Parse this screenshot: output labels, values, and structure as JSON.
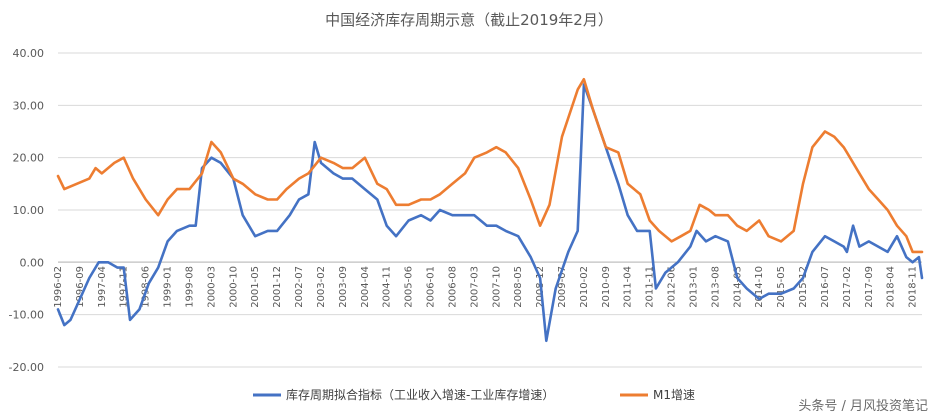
{
  "chart_data": {
    "type": "line",
    "title": "中国经济库存周期示意（截止2019年2月）",
    "ylim": [
      -20,
      40
    ],
    "yticks": [
      "40.00",
      "30.00",
      "20.00",
      "10.00",
      "0.00",
      "-10.00",
      "-20.00"
    ],
    "ytick_values": [
      40,
      30,
      20,
      10,
      0,
      -10,
      -20
    ],
    "x_start": "1996-02",
    "x_end": "2019-02",
    "xtick_labels": [
      "1996-02",
      "1996-09",
      "1997-04",
      "1997-11",
      "1998-06",
      "1999-01",
      "1999-08",
      "2000-03",
      "2000-10",
      "2001-05",
      "2001-12",
      "2002-07",
      "2003-02",
      "2003-09",
      "2004-04",
      "2004-11",
      "2005-06",
      "2006-01",
      "2006-08",
      "2007-03",
      "2007-10",
      "2008-05",
      "2008-12",
      "2009-07",
      "2010-02",
      "2010-09",
      "2011-04",
      "2011-11",
      "2012-06",
      "2013-01",
      "2013-08",
      "2014-03",
      "2014-10",
      "2015-05",
      "2015-12",
      "2016-07",
      "2017-02",
      "2017-09",
      "2018-04",
      "2018-11"
    ],
    "grid": true,
    "legend_position": "bottom",
    "series": [
      {
        "name": "库存周期拟合指标（工业收入增速-工业库存增速）",
        "color": "#4472C4",
        "points": [
          [
            "1996-02",
            -9
          ],
          [
            "1996-04",
            -12
          ],
          [
            "1996-06",
            -11
          ],
          [
            "1996-09",
            -7
          ],
          [
            "1996-12",
            -3
          ],
          [
            "1997-03",
            0
          ],
          [
            "1997-06",
            0
          ],
          [
            "1997-09",
            -1
          ],
          [
            "1997-11",
            -1
          ],
          [
            "1998-01",
            -11
          ],
          [
            "1998-04",
            -9
          ],
          [
            "1998-07",
            -4
          ],
          [
            "1998-10",
            -1
          ],
          [
            "1999-01",
            4
          ],
          [
            "1999-04",
            6
          ],
          [
            "1999-08",
            7
          ],
          [
            "1999-10",
            7
          ],
          [
            "1999-12",
            18
          ],
          [
            "2000-03",
            20
          ],
          [
            "2000-06",
            19
          ],
          [
            "2000-10",
            16
          ],
          [
            "2001-01",
            9
          ],
          [
            "2001-05",
            5
          ],
          [
            "2001-09",
            6
          ],
          [
            "2001-12",
            6
          ],
          [
            "2002-04",
            9
          ],
          [
            "2002-07",
            12
          ],
          [
            "2002-10",
            13
          ],
          [
            "2002-12",
            23
          ],
          [
            "2003-02",
            19
          ],
          [
            "2003-06",
            17
          ],
          [
            "2003-09",
            16
          ],
          [
            "2003-12",
            16
          ],
          [
            "2004-04",
            14
          ],
          [
            "2004-08",
            12
          ],
          [
            "2004-11",
            7
          ],
          [
            "2005-02",
            5
          ],
          [
            "2005-06",
            8
          ],
          [
            "2005-10",
            9
          ],
          [
            "2006-01",
            8
          ],
          [
            "2006-04",
            10
          ],
          [
            "2006-08",
            9
          ],
          [
            "2006-12",
            9
          ],
          [
            "2007-03",
            9
          ],
          [
            "2007-07",
            7
          ],
          [
            "2007-10",
            7
          ],
          [
            "2008-01",
            6
          ],
          [
            "2008-05",
            5
          ],
          [
            "2008-09",
            1
          ],
          [
            "2008-12",
            -3
          ],
          [
            "2009-02",
            -15
          ],
          [
            "2009-05",
            -5
          ],
          [
            "2009-09",
            2
          ],
          [
            "2009-12",
            6
          ],
          [
            "2010-02",
            34
          ],
          [
            "2010-05",
            29
          ],
          [
            "2010-09",
            22
          ],
          [
            "2011-01",
            15
          ],
          [
            "2011-04",
            9
          ],
          [
            "2011-07",
            6
          ],
          [
            "2011-11",
            6
          ],
          [
            "2012-01",
            -5
          ],
          [
            "2012-04",
            -2
          ],
          [
            "2012-08",
            0
          ],
          [
            "2012-12",
            3
          ],
          [
            "2013-02",
            6
          ],
          [
            "2013-05",
            4
          ],
          [
            "2013-08",
            5
          ],
          [
            "2013-12",
            4
          ],
          [
            "2014-03",
            -3
          ],
          [
            "2014-06",
            -5
          ],
          [
            "2014-10",
            -7
          ],
          [
            "2015-01",
            -6
          ],
          [
            "2015-05",
            -6
          ],
          [
            "2015-09",
            -5
          ],
          [
            "2015-12",
            -3
          ],
          [
            "2016-03",
            2
          ],
          [
            "2016-07",
            5
          ],
          [
            "2016-10",
            4
          ],
          [
            "2017-01",
            3
          ],
          [
            "2017-02",
            2
          ],
          [
            "2017-04",
            7
          ],
          [
            "2017-06",
            3
          ],
          [
            "2017-09",
            4
          ],
          [
            "2017-12",
            3
          ],
          [
            "2018-03",
            2
          ],
          [
            "2018-06",
            5
          ],
          [
            "2018-09",
            1
          ],
          [
            "2018-11",
            0
          ],
          [
            "2019-01",
            1
          ],
          [
            "2019-02",
            -3
          ]
        ]
      },
      {
        "name": "M1增速",
        "color": "#ED7D31",
        "points": [
          [
            "1996-02",
            16.5
          ],
          [
            "1996-04",
            14
          ],
          [
            "1996-08",
            15
          ],
          [
            "1996-12",
            16
          ],
          [
            "1997-02",
            18
          ],
          [
            "1997-04",
            17
          ],
          [
            "1997-08",
            19
          ],
          [
            "1997-11",
            20
          ],
          [
            "1998-02",
            16
          ],
          [
            "1998-06",
            12
          ],
          [
            "1998-10",
            9
          ],
          [
            "1999-01",
            12
          ],
          [
            "1999-04",
            14
          ],
          [
            "1999-08",
            14
          ],
          [
            "1999-12",
            17
          ],
          [
            "2000-03",
            23
          ],
          [
            "2000-06",
            21
          ],
          [
            "2000-10",
            16
          ],
          [
            "2001-01",
            15
          ],
          [
            "2001-05",
            13
          ],
          [
            "2001-09",
            12
          ],
          [
            "2001-12",
            12
          ],
          [
            "2002-03",
            14
          ],
          [
            "2002-07",
            16
          ],
          [
            "2002-10",
            17
          ],
          [
            "2003-02",
            20
          ],
          [
            "2003-06",
            19
          ],
          [
            "2003-09",
            18
          ],
          [
            "2003-12",
            18
          ],
          [
            "2004-04",
            20
          ],
          [
            "2004-08",
            15
          ],
          [
            "2004-11",
            14
          ],
          [
            "2005-02",
            11
          ],
          [
            "2005-06",
            11
          ],
          [
            "2005-10",
            12
          ],
          [
            "2006-01",
            12
          ],
          [
            "2006-04",
            13
          ],
          [
            "2006-08",
            15
          ],
          [
            "2006-12",
            17
          ],
          [
            "2007-03",
            20
          ],
          [
            "2007-07",
            21
          ],
          [
            "2007-10",
            22
          ],
          [
            "2008-01",
            21
          ],
          [
            "2008-05",
            18
          ],
          [
            "2008-09",
            12
          ],
          [
            "2008-12",
            7
          ],
          [
            "2009-03",
            11
          ],
          [
            "2009-07",
            24
          ],
          [
            "2009-12",
            33
          ],
          [
            "2010-02",
            35
          ],
          [
            "2010-05",
            29
          ],
          [
            "2010-09",
            22
          ],
          [
            "2011-01",
            21
          ],
          [
            "2011-04",
            15
          ],
          [
            "2011-08",
            13
          ],
          [
            "2011-11",
            8
          ],
          [
            "2012-02",
            6
          ],
          [
            "2012-06",
            4
          ],
          [
            "2012-09",
            5
          ],
          [
            "2012-12",
            6
          ],
          [
            "2013-03",
            11
          ],
          [
            "2013-06",
            10
          ],
          [
            "2013-08",
            9
          ],
          [
            "2013-12",
            9
          ],
          [
            "2014-03",
            7
          ],
          [
            "2014-06",
            6
          ],
          [
            "2014-10",
            8
          ],
          [
            "2015-01",
            5
          ],
          [
            "2015-05",
            4
          ],
          [
            "2015-09",
            6
          ],
          [
            "2015-12",
            15
          ],
          [
            "2016-03",
            22
          ],
          [
            "2016-07",
            25
          ],
          [
            "2016-10",
            24
          ],
          [
            "2017-01",
            22
          ],
          [
            "2017-02",
            21
          ],
          [
            "2017-06",
            17
          ],
          [
            "2017-09",
            14
          ],
          [
            "2017-12",
            12
          ],
          [
            "2018-03",
            10
          ],
          [
            "2018-06",
            7
          ],
          [
            "2018-09",
            5
          ],
          [
            "2018-11",
            2
          ],
          [
            "2019-01",
            2
          ],
          [
            "2019-02",
            2
          ]
        ]
      }
    ]
  },
  "watermark": "头条号 / 月风投资笔记"
}
